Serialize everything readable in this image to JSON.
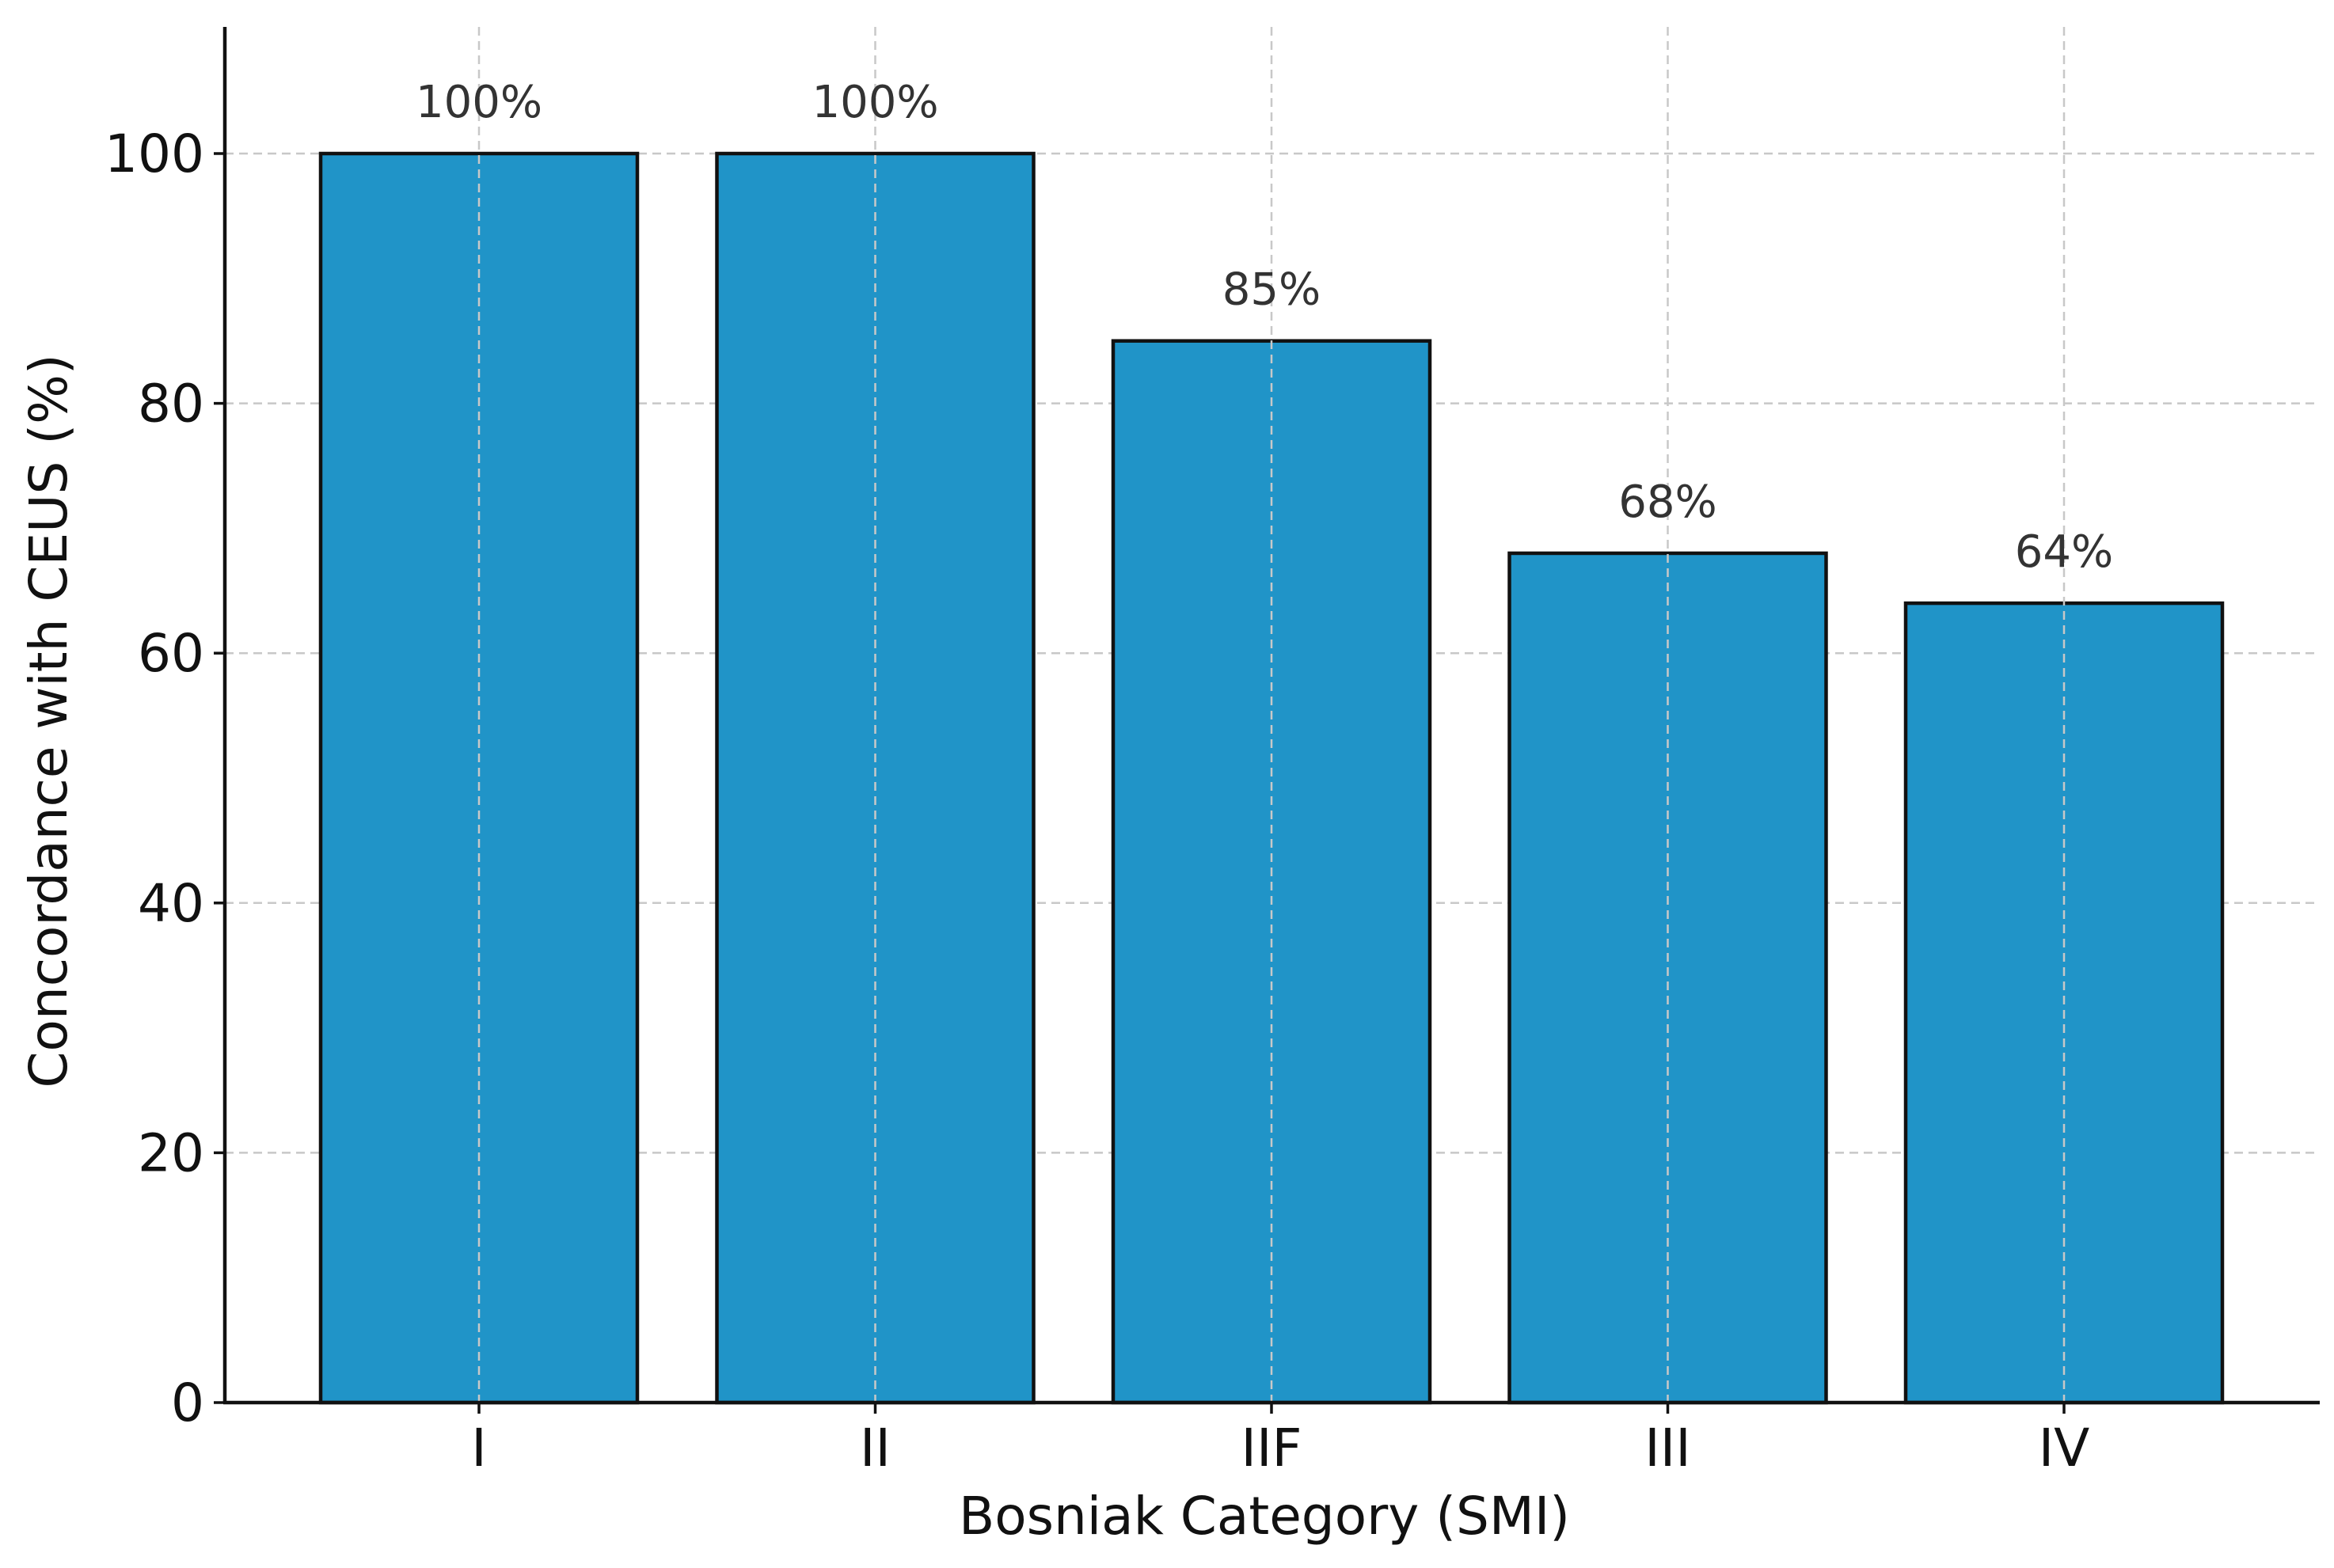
{
  "chart_data": {
    "type": "bar",
    "title": "",
    "xlabel": "Bosniak Category (SMI)",
    "ylabel": "Concordance with CEUS (%)",
    "categories": [
      "I",
      "II",
      "IIF",
      "III",
      "IV"
    ],
    "values": [
      100,
      100,
      85,
      68,
      64
    ],
    "data_labels": [
      "100%",
      "100%",
      "85%",
      "68%",
      "64%"
    ],
    "ylim": [
      0,
      110
    ],
    "yticks": [
      0,
      20,
      40,
      60,
      80,
      100
    ],
    "grid": true,
    "legend": "none",
    "bar_color": "#2094c8",
    "edge_color": "#111111"
  }
}
